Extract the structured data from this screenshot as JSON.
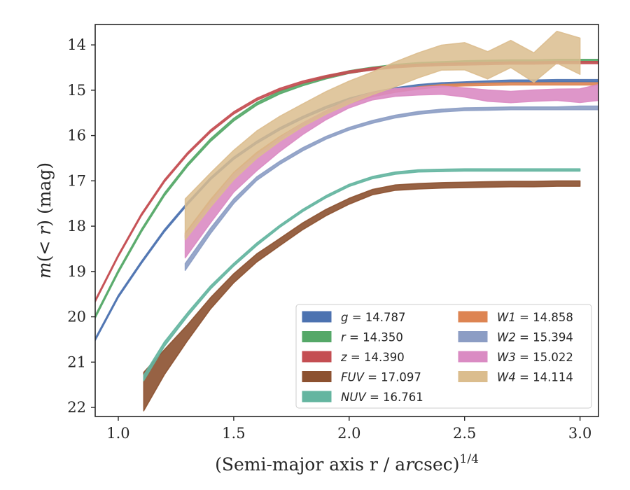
{
  "chart_data": {
    "type": "area",
    "xlabel": "(Semi-major axis r / arcsec)^1/4",
    "ylabel": "m(< r) (mag)",
    "xlim": [
      0.9,
      3.08
    ],
    "ylim": [
      22.2,
      13.55
    ],
    "y_inverted": true,
    "xticks": [
      1.0,
      1.5,
      2.0,
      2.5,
      3.0
    ],
    "xtick_labels": [
      "1.0",
      "1.5",
      "2.0",
      "2.5",
      "3.0"
    ],
    "yticks": [
      14,
      15,
      16,
      17,
      18,
      19,
      20,
      21,
      22
    ],
    "ytick_labels": [
      "14",
      "15",
      "16",
      "17",
      "18",
      "19",
      "20",
      "21",
      "22"
    ],
    "grid": false,
    "legend_position": "lower-right",
    "series": [
      {
        "name": "g",
        "legend_value": "14.787",
        "color": "#4c72b0",
        "x": [
          0.9,
          1.0,
          1.1,
          1.2,
          1.3,
          1.4,
          1.5,
          1.6,
          1.7,
          1.8,
          1.9,
          2.0,
          2.1,
          2.2,
          2.3,
          2.4,
          2.5,
          2.6,
          2.7,
          2.8,
          2.9,
          3.0,
          3.08
        ],
        "y": [
          20.5,
          19.55,
          18.8,
          18.1,
          17.5,
          16.95,
          16.5,
          16.15,
          15.85,
          15.6,
          15.38,
          15.2,
          15.07,
          14.97,
          14.9,
          14.86,
          14.84,
          14.82,
          14.8,
          14.8,
          14.79,
          14.79,
          14.79
        ],
        "width": [
          0.05,
          0.05,
          0.05,
          0.05,
          0.05,
          0.05,
          0.05,
          0.05,
          0.05,
          0.05,
          0.05,
          0.05,
          0.05,
          0.05,
          0.05,
          0.05,
          0.05,
          0.05,
          0.05,
          0.05,
          0.05,
          0.05,
          0.05
        ]
      },
      {
        "name": "r",
        "legend_value": "14.350",
        "color": "#55a868",
        "x": [
          0.9,
          1.0,
          1.1,
          1.2,
          1.3,
          1.4,
          1.5,
          1.6,
          1.7,
          1.8,
          1.9,
          2.0,
          2.1,
          2.2,
          2.3,
          2.4,
          2.5,
          2.6,
          2.7,
          2.8,
          2.9,
          3.0,
          3.08
        ],
        "y": [
          20.0,
          19.0,
          18.1,
          17.3,
          16.65,
          16.1,
          15.65,
          15.3,
          15.05,
          14.87,
          14.72,
          14.6,
          14.52,
          14.46,
          14.42,
          14.4,
          14.38,
          14.37,
          14.36,
          14.36,
          14.35,
          14.35,
          14.35
        ],
        "width": [
          0.06,
          0.06,
          0.06,
          0.06,
          0.06,
          0.06,
          0.06,
          0.06,
          0.06,
          0.06,
          0.06,
          0.06,
          0.06,
          0.06,
          0.06,
          0.06,
          0.06,
          0.06,
          0.06,
          0.06,
          0.06,
          0.06,
          0.06
        ]
      },
      {
        "name": "z",
        "legend_value": "14.390",
        "color": "#c44e52",
        "x": [
          0.9,
          1.0,
          1.1,
          1.2,
          1.3,
          1.4,
          1.5,
          1.6,
          1.7,
          1.8,
          1.9,
          2.0,
          2.1,
          2.2,
          2.3,
          2.4,
          2.5,
          2.6,
          2.7,
          2.8,
          2.9,
          3.0,
          3.08
        ],
        "y": [
          19.65,
          18.65,
          17.75,
          17.0,
          16.4,
          15.9,
          15.5,
          15.2,
          14.98,
          14.82,
          14.7,
          14.6,
          14.53,
          14.48,
          14.45,
          14.43,
          14.42,
          14.41,
          14.4,
          14.4,
          14.39,
          14.39,
          14.39
        ],
        "width": [
          0.05,
          0.05,
          0.05,
          0.05,
          0.05,
          0.05,
          0.05,
          0.05,
          0.05,
          0.05,
          0.05,
          0.05,
          0.05,
          0.05,
          0.05,
          0.05,
          0.05,
          0.05,
          0.05,
          0.05,
          0.05,
          0.05,
          0.05
        ]
      },
      {
        "name": "FUV",
        "legend_value": "17.097",
        "color": "#8c5130",
        "x": [
          1.11,
          1.2,
          1.3,
          1.4,
          1.5,
          1.6,
          1.7,
          1.8,
          1.9,
          2.0,
          2.1,
          2.2,
          2.3,
          2.4,
          2.5,
          2.6,
          2.7,
          2.8,
          2.9,
          3.0
        ],
        "y": [
          21.65,
          21.0,
          20.35,
          19.7,
          19.15,
          18.7,
          18.35,
          18.0,
          17.7,
          17.45,
          17.25,
          17.15,
          17.12,
          17.1,
          17.09,
          17.08,
          17.07,
          17.07,
          17.06,
          17.06
        ],
        "width": [
          0.85,
          0.55,
          0.35,
          0.25,
          0.2,
          0.18,
          0.16,
          0.15,
          0.14,
          0.13,
          0.12,
          0.12,
          0.12,
          0.12,
          0.12,
          0.12,
          0.12,
          0.12,
          0.12,
          0.12
        ]
      },
      {
        "name": "NUV",
        "legend_value": "16.761",
        "color": "#64b5a0",
        "x": [
          1.11,
          1.2,
          1.3,
          1.4,
          1.5,
          1.6,
          1.7,
          1.8,
          1.9,
          2.0,
          2.1,
          2.2,
          2.3,
          2.4,
          2.5,
          2.6,
          2.7,
          2.8,
          2.9,
          3.0
        ],
        "y": [
          21.35,
          20.6,
          19.95,
          19.35,
          18.85,
          18.4,
          18.0,
          17.65,
          17.35,
          17.1,
          16.93,
          16.83,
          16.78,
          16.77,
          16.76,
          16.76,
          16.76,
          16.76,
          16.76,
          16.76
        ],
        "width": [
          0.12,
          0.1,
          0.08,
          0.07,
          0.06,
          0.06,
          0.05,
          0.05,
          0.05,
          0.05,
          0.05,
          0.05,
          0.05,
          0.05,
          0.05,
          0.05,
          0.05,
          0.05,
          0.05,
          0.05
        ]
      },
      {
        "name": "W1",
        "legend_value": "14.858",
        "color": "#dd8452",
        "x": [
          1.29,
          1.4,
          1.5,
          1.6,
          1.7,
          1.8,
          1.9,
          2.0,
          2.1,
          2.2,
          2.3,
          2.4,
          2.5,
          2.6,
          2.7,
          2.8,
          2.9,
          3.0,
          3.08
        ],
        "y": [
          18.2,
          17.45,
          16.85,
          16.4,
          16.05,
          15.75,
          15.48,
          15.27,
          15.12,
          15.02,
          14.95,
          14.9,
          14.88,
          14.87,
          14.86,
          14.86,
          14.86,
          14.86,
          14.86
        ],
        "width": [
          0.1,
          0.08,
          0.07,
          0.06,
          0.06,
          0.06,
          0.05,
          0.05,
          0.05,
          0.05,
          0.05,
          0.05,
          0.05,
          0.05,
          0.05,
          0.05,
          0.05,
          0.05,
          0.05
        ]
      },
      {
        "name": "W2",
        "legend_value": "15.394",
        "color": "#8c9dc4",
        "x": [
          1.29,
          1.4,
          1.5,
          1.6,
          1.7,
          1.8,
          1.9,
          2.0,
          2.1,
          2.2,
          2.3,
          2.4,
          2.5,
          2.6,
          2.7,
          2.8,
          2.9,
          3.0,
          3.08
        ],
        "y": [
          18.9,
          18.1,
          17.45,
          16.95,
          16.6,
          16.3,
          16.05,
          15.85,
          15.7,
          15.58,
          15.5,
          15.45,
          15.42,
          15.41,
          15.4,
          15.4,
          15.4,
          15.39,
          15.39
        ],
        "width": [
          0.15,
          0.12,
          0.1,
          0.08,
          0.07,
          0.07,
          0.06,
          0.06,
          0.06,
          0.06,
          0.06,
          0.06,
          0.06,
          0.06,
          0.06,
          0.06,
          0.06,
          0.08,
          0.08
        ]
      },
      {
        "name": "W3",
        "legend_value": "15.022",
        "color": "#da8bc3",
        "x": [
          1.29,
          1.4,
          1.5,
          1.6,
          1.7,
          1.8,
          1.9,
          2.0,
          2.1,
          2.2,
          2.3,
          2.4,
          2.5,
          2.6,
          2.7,
          2.8,
          2.9,
          3.0,
          3.08
        ],
        "y": [
          18.45,
          17.7,
          17.05,
          16.6,
          16.2,
          15.85,
          15.55,
          15.3,
          15.13,
          15.05,
          15.02,
          15.0,
          15.05,
          15.12,
          15.15,
          15.12,
          15.1,
          15.12,
          15.05
        ],
        "width": [
          0.5,
          0.45,
          0.4,
          0.35,
          0.3,
          0.25,
          0.2,
          0.18,
          0.17,
          0.17,
          0.17,
          0.18,
          0.2,
          0.25,
          0.25,
          0.25,
          0.25,
          0.3,
          0.35
        ]
      },
      {
        "name": "W4",
        "legend_value": "14.114",
        "color": "#dbbd8e",
        "x": [
          1.29,
          1.4,
          1.5,
          1.6,
          1.7,
          1.8,
          1.9,
          2.0,
          2.1,
          2.2,
          2.3,
          2.4,
          2.5,
          2.6,
          2.7,
          2.8,
          2.9,
          3.0
        ],
        "y": [
          17.85,
          17.2,
          16.65,
          16.2,
          15.85,
          15.55,
          15.28,
          15.05,
          14.85,
          14.65,
          14.45,
          14.28,
          14.25,
          14.45,
          14.2,
          14.5,
          14.05,
          14.25
        ],
        "width": [
          0.9,
          0.75,
          0.65,
          0.6,
          0.55,
          0.5,
          0.5,
          0.5,
          0.5,
          0.55,
          0.55,
          0.55,
          0.6,
          0.6,
          0.6,
          0.65,
          0.7,
          0.8
        ]
      }
    ]
  }
}
